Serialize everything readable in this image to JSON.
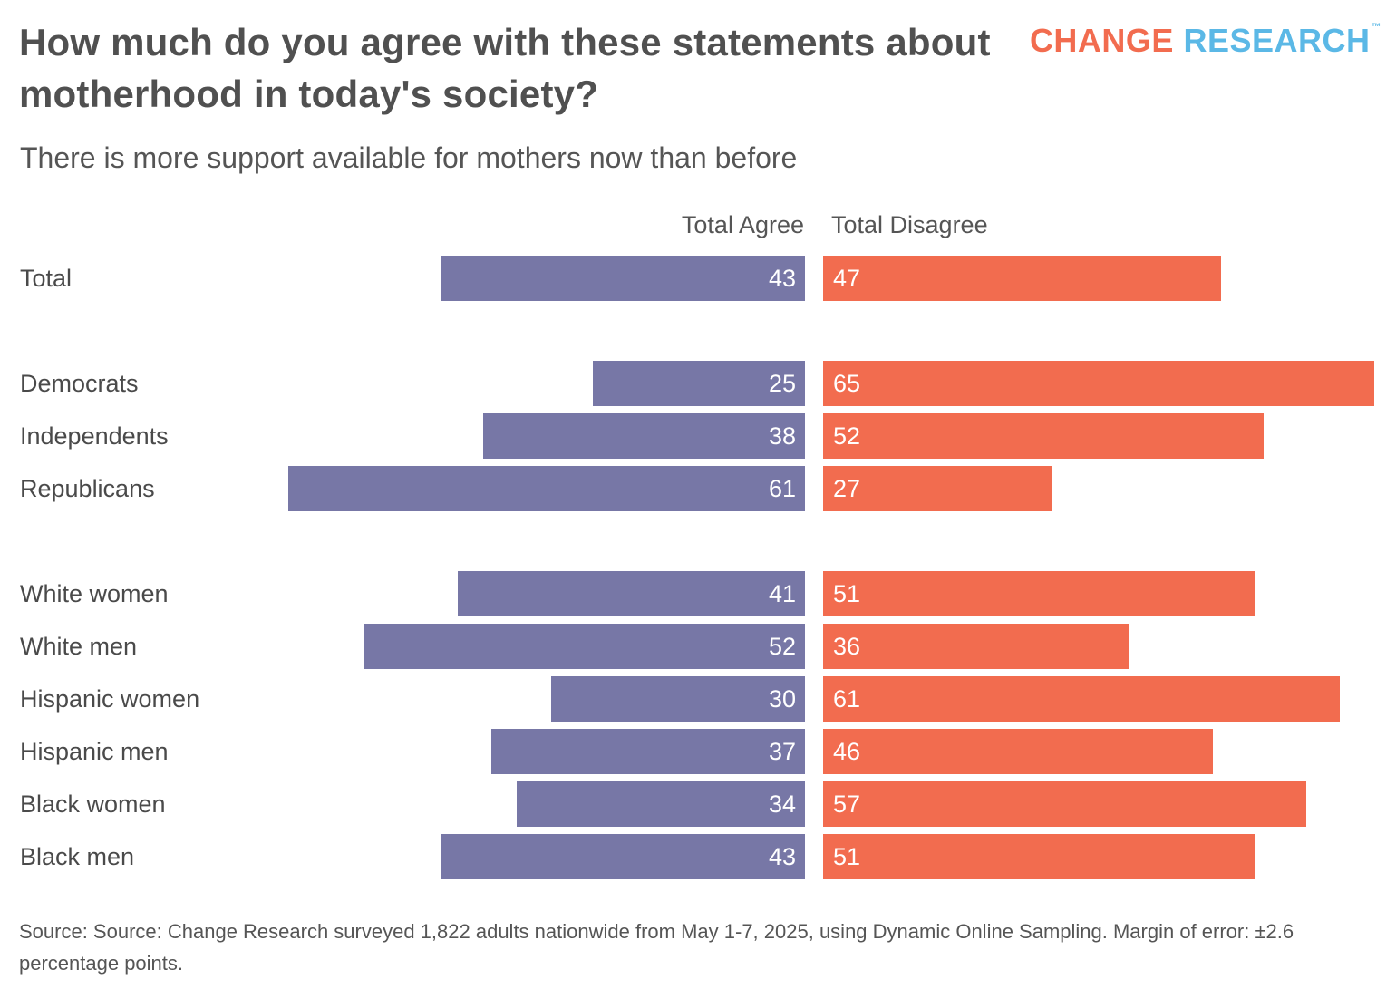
{
  "header": {
    "title": "How much do you agree with these statements about motherhood in today's society?",
    "brand_part1": "CHANGE",
    "brand_part2": "RESEARCH",
    "brand_tm": "™"
  },
  "colors": {
    "agree": "#7777a6",
    "disagree": "#f26c4f",
    "brand_orange": "#f26c4f",
    "brand_blue": "#5bb8e6"
  },
  "chart_data": {
    "type": "bar",
    "orientation": "horizontal-diverging",
    "subtitle": "There is more support available for mothers now than before",
    "categories": [
      "Total",
      "Democrats",
      "Independents",
      "Republicans",
      "White women",
      "White men",
      "Hispanic women",
      "Hispanic men",
      "Black women",
      "Black men"
    ],
    "groups": [
      [
        "Total"
      ],
      [
        "Democrats",
        "Independents",
        "Republicans"
      ],
      [
        "White women",
        "White men",
        "Hispanic women",
        "Hispanic men",
        "Black women",
        "Black men"
      ]
    ],
    "series": [
      {
        "name": "Total Agree",
        "values": [
          43,
          25,
          38,
          61,
          41,
          52,
          30,
          37,
          34,
          43
        ]
      },
      {
        "name": "Total Disagree",
        "values": [
          47,
          65,
          52,
          27,
          51,
          36,
          61,
          46,
          57,
          51
        ]
      }
    ],
    "grid": false
  },
  "footer": {
    "source": "Source: Source: Change Research surveyed 1,822 adults nationwide from May 1-7, 2025, using Dynamic Online Sampling. Margin of error: ±2.6 percentage points."
  }
}
